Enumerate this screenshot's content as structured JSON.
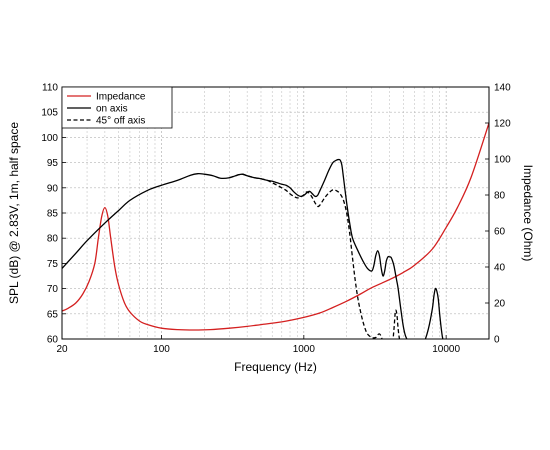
{
  "chart_data": {
    "type": "line",
    "title": "",
    "xlabel": "Frequency (Hz)",
    "ylabel": "SPL (dB) @ 2.83V, 1m, half space",
    "y2label": "Impedance (Ohm)",
    "xscale": "log",
    "xlim": [
      20,
      20000
    ],
    "ylim": [
      60,
      110
    ],
    "y2lim": [
      0,
      140
    ],
    "xticks": [
      20,
      100,
      1000,
      10000
    ],
    "xtick_labels": [
      "20",
      "100",
      "1000",
      "10000"
    ],
    "yticks": [
      60,
      65,
      70,
      75,
      80,
      85,
      90,
      95,
      100,
      105,
      110
    ],
    "ytick_labels": [
      "60",
      "65",
      "70",
      "75",
      "80",
      "85",
      "90",
      "95",
      "100",
      "105",
      "110"
    ],
    "y2ticks": [
      0,
      20,
      40,
      60,
      80,
      100,
      120,
      140
    ],
    "y2tick_labels": [
      "0",
      "20",
      "40",
      "60",
      "80",
      "100",
      "120",
      "140"
    ],
    "grid": true,
    "legend_position": "top-left",
    "series": [
      {
        "name": "Impedance",
        "axis": "right",
        "color": "#d42020",
        "dash": "solid",
        "x": [
          20,
          22,
          25,
          28,
          31,
          34,
          36,
          38,
          40,
          42,
          44,
          47,
          50,
          55,
          60,
          70,
          80,
          100,
          130,
          170,
          220,
          300,
          400,
          500,
          700,
          1000,
          1300,
          1600,
          2000,
          2500,
          3000,
          4000,
          5000,
          6000,
          8000,
          10000,
          12000,
          15000,
          20000
        ],
        "values": [
          15.5,
          17,
          20,
          25,
          32,
          42,
          56,
          68,
          73,
          68,
          56,
          40,
          30,
          20,
          15,
          10,
          8,
          6,
          5.2,
          5,
          5.2,
          6,
          7,
          8,
          9.5,
          12,
          14.5,
          17.5,
          21,
          25,
          28.5,
          33,
          37,
          41,
          50,
          62,
          73,
          90,
          120
        ]
      },
      {
        "name": "on axis",
        "axis": "left",
        "color": "#000000",
        "dash": "solid",
        "x": [
          20,
          25,
          30,
          40,
          50,
          60,
          80,
          100,
          130,
          160,
          180,
          200,
          230,
          260,
          300,
          340,
          370,
          400,
          450,
          500,
          550,
          600,
          650,
          700,
          750,
          800,
          850,
          900,
          950,
          1000,
          1050,
          1100,
          1150,
          1200,
          1250,
          1300,
          1400,
          1500,
          1600,
          1700,
          1750,
          1800,
          1850,
          1900,
          2000,
          2100,
          2200,
          2400,
          2600,
          2800,
          3000,
          3100,
          3200,
          3300,
          3400,
          3500,
          3600,
          3700,
          3800,
          3900,
          4000,
          4100,
          4200,
          4300,
          4400,
          4500,
          4600,
          4800,
          5000,
          5200,
          5500,
          6000,
          6500,
          7000,
          7500,
          8000,
          8200,
          8400,
          8600,
          8800,
          9000,
          9200,
          9400,
          9600
        ],
        "values": [
          74,
          77,
          79.5,
          83,
          85.5,
          87.5,
          89.5,
          90.5,
          91.5,
          92.5,
          92.8,
          92.7,
          92.4,
          91.9,
          92,
          92.5,
          92.7,
          92.4,
          92,
          91.8,
          91.5,
          91.3,
          91,
          90.7,
          90.5,
          90,
          89.2,
          88.6,
          88.3,
          88.5,
          89,
          89.3,
          88.8,
          88.3,
          88.5,
          89.5,
          91.5,
          93.5,
          95,
          95.5,
          95.6,
          95.5,
          94.5,
          92,
          87,
          83,
          80,
          77.5,
          75.5,
          74,
          73.5,
          74.5,
          76.5,
          77.5,
          76.5,
          74,
          72.5,
          73.5,
          75.5,
          76.3,
          76.3,
          76.2,
          75.5,
          74.5,
          73,
          71.5,
          70,
          66,
          62.5,
          60.5,
          59.5,
          59.5,
          59.5,
          59.5,
          62,
          66,
          68.5,
          70,
          69.5,
          68,
          65,
          62.5,
          60.5,
          59.5
        ]
      },
      {
        "name": "45° off axis",
        "axis": "left",
        "color": "#000000",
        "dash": "dashed",
        "x": [
          300,
          340,
          370,
          400,
          450,
          500,
          550,
          600,
          650,
          700,
          750,
          800,
          850,
          900,
          950,
          1000,
          1050,
          1100,
          1150,
          1200,
          1250,
          1300,
          1400,
          1500,
          1600,
          1700,
          1800,
          1900,
          2000,
          2100,
          2200,
          2300,
          2400,
          2500,
          2600,
          2700,
          2800,
          3000,
          3200,
          3300,
          3400,
          3500,
          3600,
          3800,
          4000,
          4200,
          4300,
          4400,
          4500,
          4600,
          4700,
          4800
        ],
        "values": [
          92,
          92.5,
          92.7,
          92.4,
          92,
          91.8,
          91.5,
          91,
          90.5,
          90,
          89.5,
          88.8,
          88.3,
          88,
          88.2,
          88.6,
          89.2,
          88.8,
          88.0,
          87.0,
          86.3,
          86.6,
          88,
          89,
          89.6,
          89.4,
          88.8,
          87.5,
          85,
          81,
          76,
          71.5,
          68,
          65.5,
          63.5,
          62,
          61,
          60.3,
          60.3,
          60.8,
          61,
          60.5,
          59.5,
          59.5,
          59.5,
          59.5,
          62,
          65.5,
          65,
          62,
          60,
          59.5
        ]
      }
    ]
  }
}
